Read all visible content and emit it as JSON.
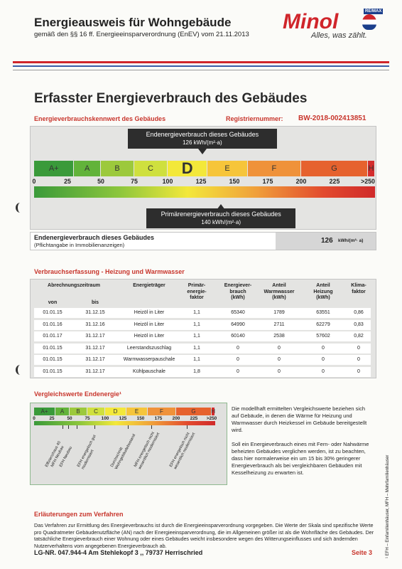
{
  "header": {
    "title": "Energieausweis für Wohngebäude",
    "subtitle": "gemäß den §§ 16 ff. Energieeinsparverordnung (EnEV) vom 21.11.2013",
    "logo": "Minol",
    "badge": "RE/MAX",
    "slogan": "Alles, was zählt."
  },
  "section_title": "Erfasster Energieverbrauch des Gebäudes",
  "kennwert": {
    "label": "Energieverbrauchskennwert des Gebäudes",
    "reg_label": "Registriernummer:",
    "reg_number": "BW-2018-002413851",
    "classes": [
      "A+",
      "A",
      "B",
      "C",
      "D",
      "E",
      "F",
      "G",
      "H"
    ],
    "ticks": [
      0,
      25,
      50,
      75,
      100,
      125,
      150,
      175,
      200,
      225,
      ">250"
    ],
    "end_callout": {
      "label": "Endenergieverbrauch dieses Gebäudes",
      "value": 126,
      "unit": "kWh/(m²·a)"
    },
    "primary_callout": {
      "label": "Primärenergieverbrauch dieses Gebäudes",
      "value": 140,
      "unit": "kWh/(m²·a)"
    },
    "summary": {
      "label": "Endenergieverbrauch dieses Gebäudes",
      "note": "(Pflichtangabe in Immobilienanzeigen)",
      "value": 126,
      "unit": "kWh/(m²· a)"
    }
  },
  "consumption": {
    "title": "Verbrauchserfassung - Heizung und Warmwasser",
    "period": "Abrechnungszeitraum",
    "header": [
      "von",
      "bis",
      "Energieträger",
      "Primär-\nenergie-\nfaktor",
      "Energiever-\nbrauch\n(kWh)",
      "Anteil\nWarmwasser\n(kWh)",
      "Anteil\nHeizung\n(kWh)",
      "Klima-\nfaktor"
    ],
    "rows": [
      [
        "01.01.15",
        "31.12.15",
        "Heizöl in Liter",
        "1,1",
        "65340",
        "1789",
        "63551",
        "0,86"
      ],
      [
        "01.01.16",
        "31.12.16",
        "Heizöl in Liter",
        "1,1",
        "64990",
        "2711",
        "62279",
        "0,83"
      ],
      [
        "01.01.17",
        "31.12.17",
        "Heizöl in Liter",
        "1,1",
        "60140",
        "2538",
        "57602",
        "0,82"
      ],
      [
        "01.01.15",
        "31.12.17",
        "Leerstandszuschlag",
        "1,1",
        "0",
        "0",
        "0",
        "0"
      ],
      [
        "01.01.15",
        "31.12.17",
        "Warmwasserpauschale",
        "1,1",
        "0",
        "0",
        "0",
        "0"
      ],
      [
        "01.01.15",
        "31.12.17",
        "Kühlpauschale",
        "1,8",
        "0",
        "0",
        "0",
        "0"
      ]
    ]
  },
  "comparison": {
    "title": "Vergleichswerte Endenergie¹",
    "classes": [
      "A+",
      "A",
      "B",
      "C",
      "D",
      "E",
      "F",
      "G",
      "H"
    ],
    "ticks": [
      0,
      25,
      50,
      75,
      100,
      125,
      150,
      175,
      200,
      225,
      ">250"
    ],
    "labels": [
      "Effizienzhaus 40",
      "MFH Neubau",
      "EFH Neubau",
      "EFH energetisch gut modernisiert",
      "Durchschnitt Wohngebäudebestand",
      "MFH energetisch nicht wesentlich modernisiert",
      "EFH energetisch nicht wesentlich modernisiert"
    ],
    "paragraphs": [
      "Die modellhaft ermittelten Vergleichswerte beziehen sich auf Gebäude, in denen die Wärme für Heizung und Warmwasser durch Heizkessel im Gebäude bereitgestellt wird.",
      "Soll ein Energieverbrauch eines mit Fern- oder Nahwärme beheizten Gebäudes verglichen werden, ist zu beachten, dass hier normalerweise ein um 15 bis 30% geringerer Energieverbrauch als bei vergleichbaren Gebäuden mit Kesselheizung zu erwarten ist."
    ]
  },
  "explanation": {
    "title": "Erläuterungen zum Verfahren",
    "text": "Das Verfahren zur Ermittlung des Energieverbrauchs ist durch die Energieeinsparverordnung vorgegeben. Die Werte der Skala sind spezifische Werte pro Quadratmeter Gebäudenutzfläche (AN) nach der Energieeinsparverordnung, die im Allgemeinen größer ist als die Wohnfläche des Gebäudes. Der tatsächliche Energieverbrauch einer Wohnung oder eines Gebäudes weicht insbesondere wegen des Witterungseinflusses und sich ändernden Nutzerverhaltens vom angegebenen Energieverbrauch ab."
  },
  "side_note": "¹ EFH – Einfamilienhäuser, MFH – Mehrfamilienhäuser",
  "footer": {
    "address": "LG-NR. 047.944-4 Am Stehlekopf 3  ,, 79737 Herrischried",
    "page": "Seite 3"
  }
}
